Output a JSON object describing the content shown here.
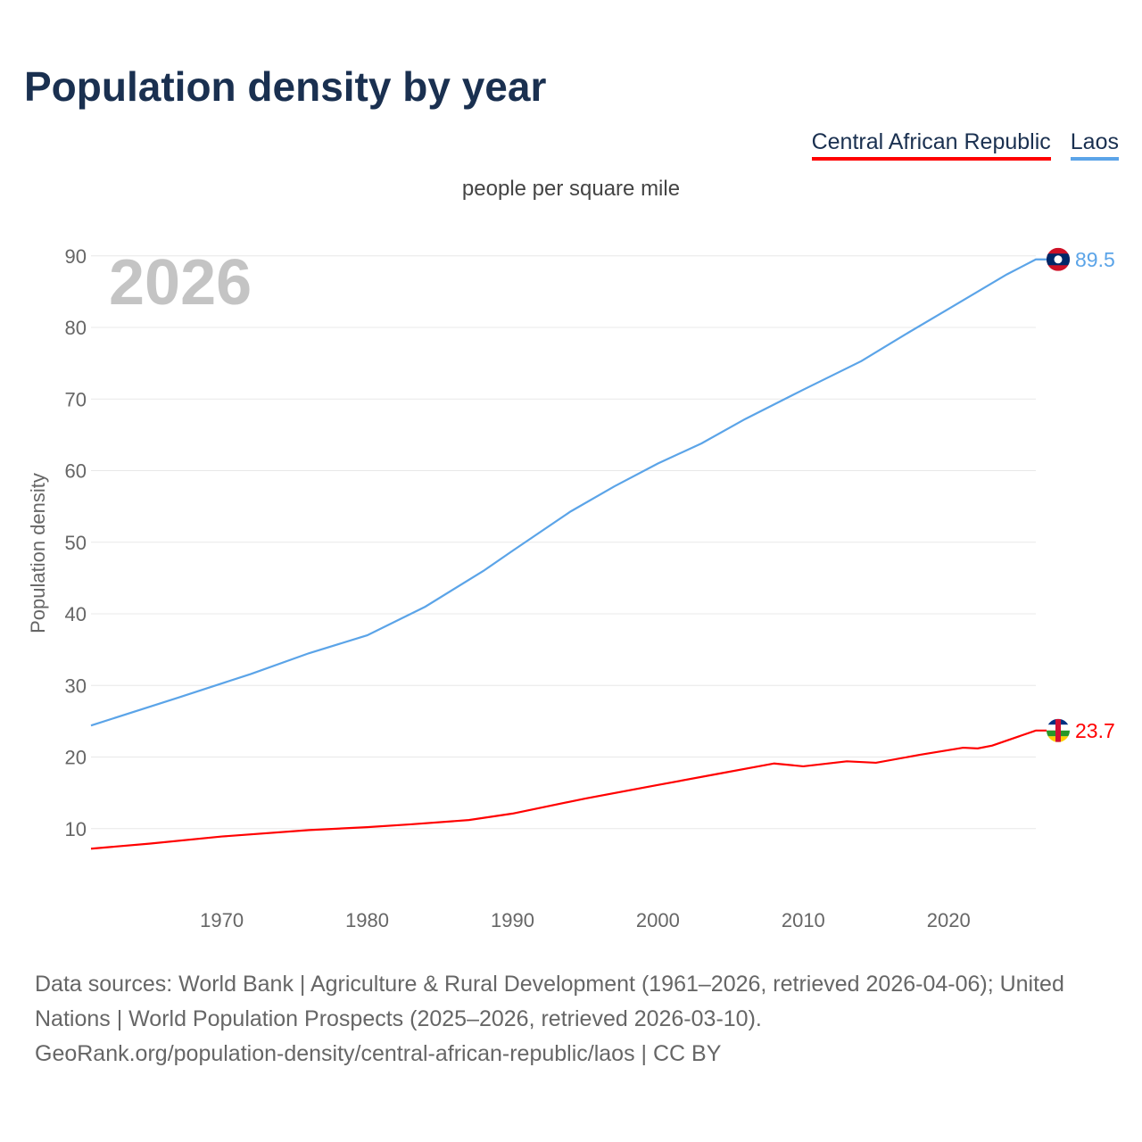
{
  "title": "Population density by year",
  "subtitle": "people per square mile",
  "year_watermark": "2026",
  "source_line1": "Data sources: World Bank | Agriculture & Rural Development (1961–2026, retrieved 2026-04-06); United Nations | World Population Prospects (2025–2026, retrieved 2026-03-10).",
  "source_line2": "GeoRank.org/population-density/central-african-republic/laos | CC BY",
  "chart_data": {
    "type": "line",
    "title": "Population density by year",
    "xlabel": "",
    "ylabel": "Population density",
    "xlim": [
      1961,
      2026
    ],
    "ylim": [
      0,
      90
    ],
    "xticks": [
      1970,
      1980,
      1990,
      2000,
      2010,
      2020
    ],
    "yticks": [
      10,
      20,
      30,
      40,
      50,
      60,
      70,
      80,
      90
    ],
    "grid": true,
    "legend": "top-right",
    "series": [
      {
        "name": "Central African Republic",
        "color": "#ff0000",
        "end_label": "23.7",
        "flag": "central-african-republic",
        "x": [
          1961,
          1965,
          1970,
          1976,
          1980,
          1983,
          1987,
          1990,
          1995,
          2000,
          2004,
          2008,
          2010,
          2013,
          2015,
          2018,
          2021,
          2022,
          2023,
          2026
        ],
        "y": [
          7.2,
          7.9,
          8.9,
          9.8,
          10.2,
          10.6,
          11.2,
          12.1,
          14.2,
          16.1,
          17.6,
          19.1,
          18.7,
          19.4,
          19.2,
          20.3,
          21.3,
          21.2,
          21.6,
          23.7
        ]
      },
      {
        "name": "Laos",
        "color": "#5ba4e8",
        "end_label": "89.5",
        "flag": "laos",
        "x": [
          1961,
          1967,
          1972,
          1976,
          1980,
          1984,
          1988,
          1990,
          1994,
          1997,
          2000,
          2003,
          2006,
          2010,
          2014,
          2017,
          2020,
          2024,
          2026
        ],
        "y": [
          24.4,
          28.3,
          31.6,
          34.5,
          37.0,
          41.0,
          46.0,
          48.8,
          54.3,
          57.8,
          61.0,
          63.8,
          67.2,
          71.3,
          75.3,
          79.0,
          82.6,
          87.4,
          89.5
        ]
      }
    ]
  }
}
